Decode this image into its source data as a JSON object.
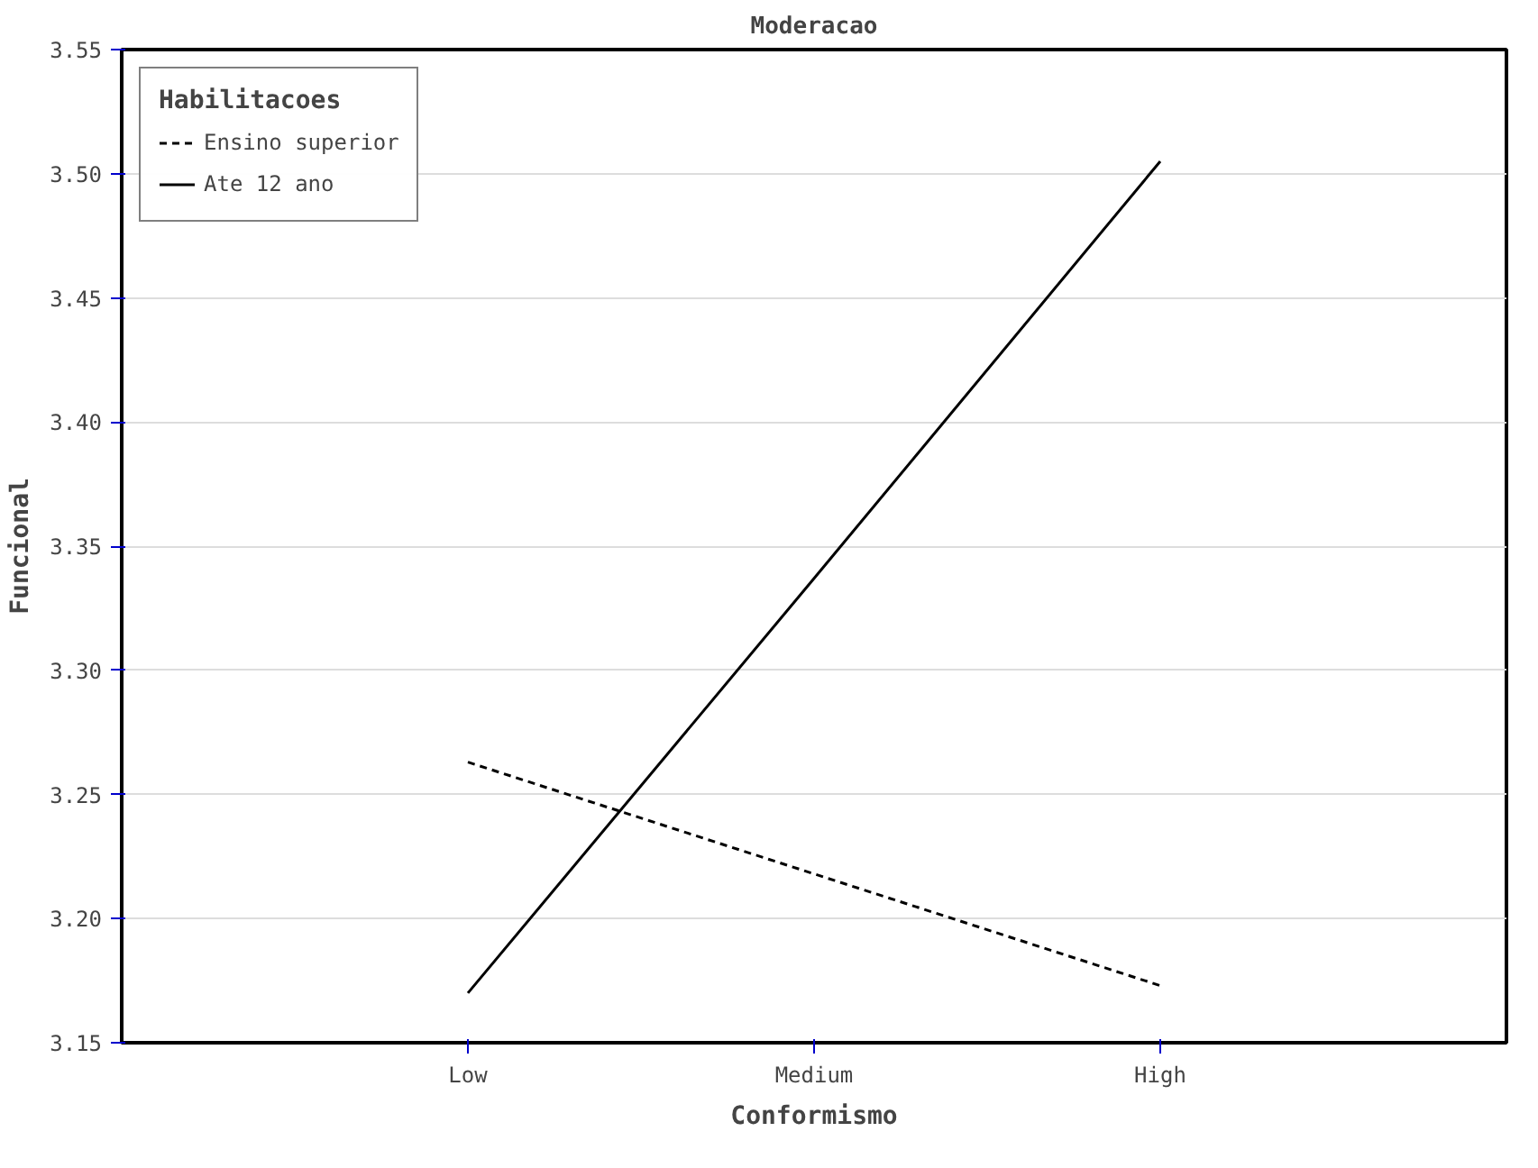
{
  "chart_data": {
    "type": "line",
    "title": "Moderacao",
    "xlabel": "Conformismo",
    "ylabel": "Funcional",
    "legend_title": "Habilitacoes",
    "categories": [
      "Low",
      "Medium",
      "High"
    ],
    "series": [
      {
        "name": "Ensino superior",
        "color": "#000000",
        "values": [
          3.263,
          3.218,
          3.173
        ],
        "line_style": "dashed"
      },
      {
        "name": "Ate 12 ano",
        "color": "#000000",
        "values": [
          3.17,
          3.337,
          3.505
        ],
        "line_style": "solid"
      }
    ],
    "ylim": [
      3.15,
      3.55
    ],
    "yticks": [
      {
        "value": 3.15,
        "label": "3.15"
      },
      {
        "value": 3.2,
        "label": "3.20"
      },
      {
        "value": 3.25,
        "label": "3.25"
      },
      {
        "value": 3.3,
        "label": "3.30"
      },
      {
        "value": 3.35,
        "label": "3.35"
      },
      {
        "value": 3.4,
        "label": "3.40"
      },
      {
        "value": 3.45,
        "label": "3.45"
      },
      {
        "value": 3.5,
        "label": "3.50"
      },
      {
        "value": 3.55,
        "label": "3.55"
      }
    ],
    "grid": "y",
    "legend": "top left",
    "marker": "none"
  }
}
